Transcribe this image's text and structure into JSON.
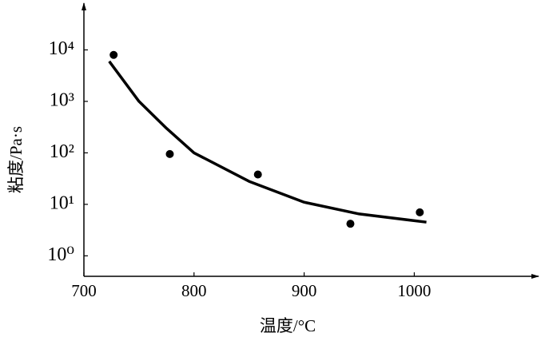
{
  "chart_data": {
    "type": "scatter",
    "x_label": "温度/°C",
    "y_label": "粘度/Pa·s",
    "xlim": [
      700,
      1110
    ],
    "xticks": [
      700,
      800,
      900,
      1000
    ],
    "ylim": [
      0.4,
      70000
    ],
    "log_y": true,
    "yticks": [
      {
        "value": 1,
        "label": "10⁰"
      },
      {
        "value": 10,
        "label": "10¹"
      },
      {
        "value": 100,
        "label": "10²"
      },
      {
        "value": 1000,
        "label": "10³"
      },
      {
        "value": 10000,
        "label": "10⁴"
      }
    ],
    "series": [
      {
        "type": "scatter",
        "color": "#000000",
        "x": [
          727,
          778,
          858,
          942,
          1005
        ],
        "values": [
          8000,
          95,
          38,
          4.2,
          7
        ]
      },
      {
        "type": "line",
        "color": "#000000",
        "x": [
          723,
          750,
          775,
          800,
          850,
          900,
          950,
          1011
        ],
        "values": [
          6000,
          1000,
          300,
          100,
          28,
          11,
          6.5,
          4.5
        ]
      }
    ]
  }
}
